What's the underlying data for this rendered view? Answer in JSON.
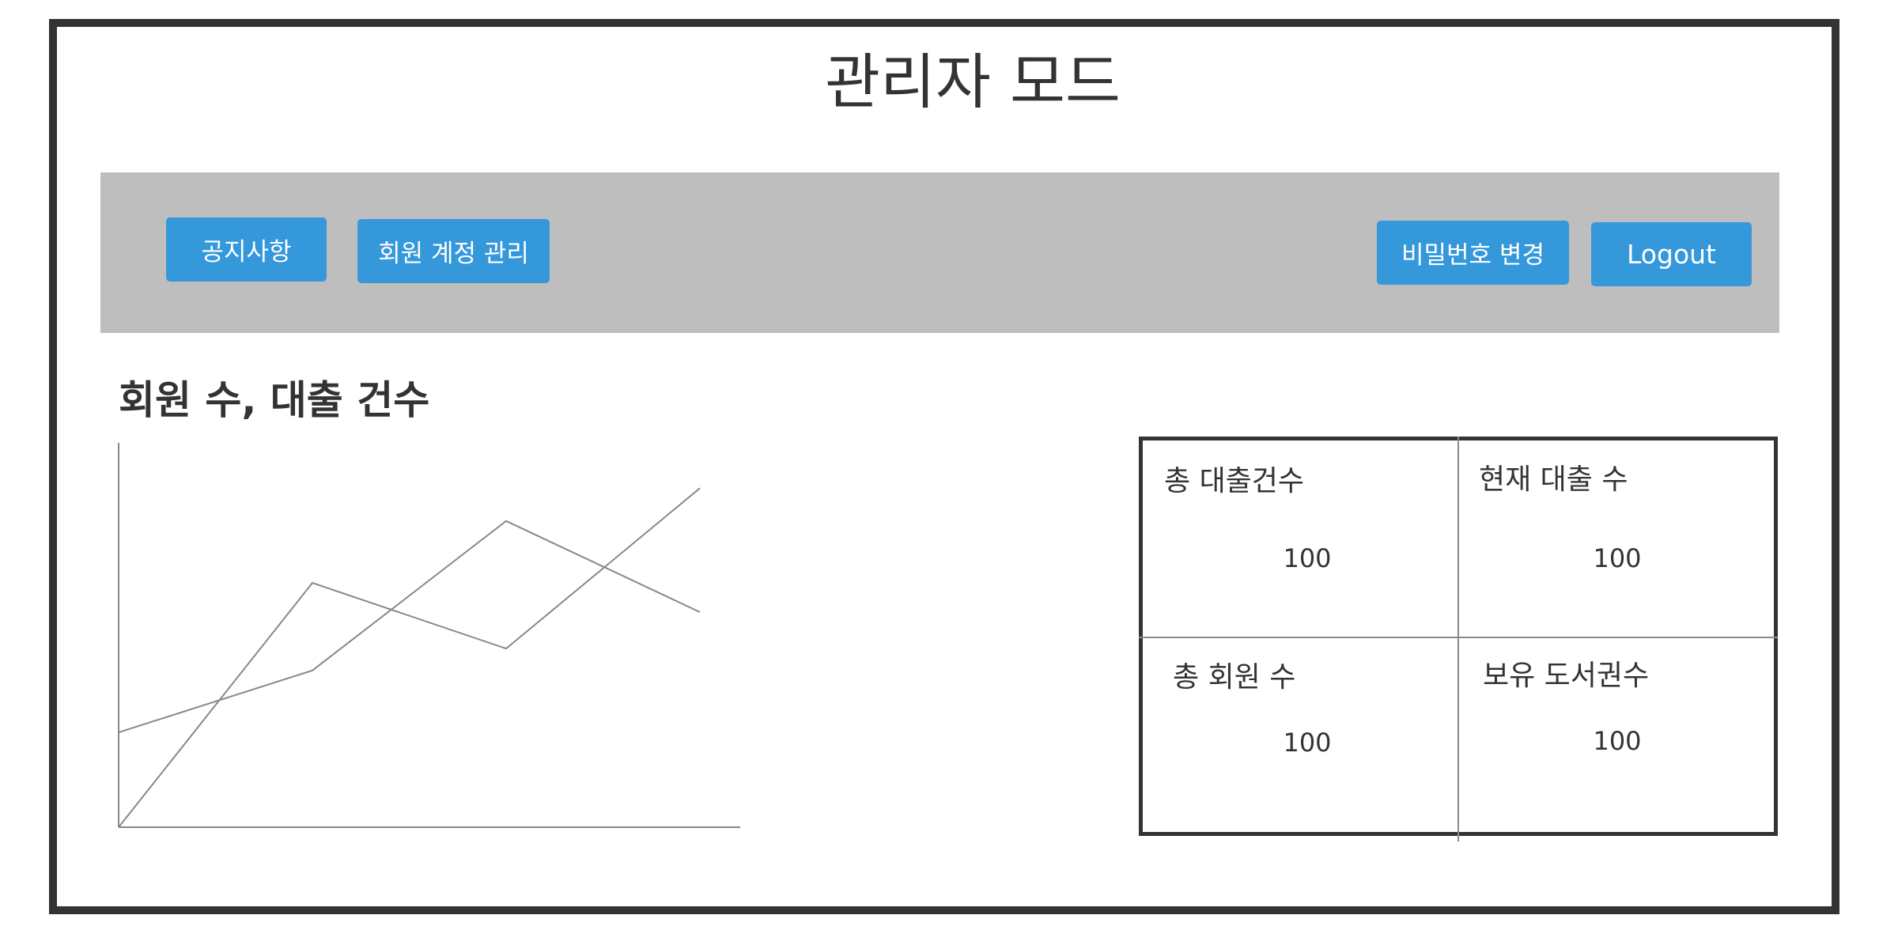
{
  "page": {
    "title": "관리자 모드"
  },
  "nav": {
    "notice_label": "공지사항",
    "account_label": "회원 계정 관리",
    "password_label": "비밀번호 변경",
    "logout_label": "Logout"
  },
  "chart_section": {
    "title": "회원 수, 대출 건수"
  },
  "chart_data": {
    "type": "line",
    "title": "회원 수, 대출 건수",
    "xlabel": "",
    "ylabel": "",
    "x": [
      0,
      1,
      2,
      3
    ],
    "series": [
      {
        "values": [
          0.26,
          0.43,
          0.84,
          0.59
        ]
      },
      {
        "values": [
          0,
          0.67,
          0.49,
          0.93
        ]
      }
    ],
    "grid": false,
    "colors": [
      "#888888",
      "#888888"
    ]
  },
  "stats": {
    "total_loans_label": "총 대출건수",
    "total_loans_value": "100",
    "current_loans_label": "현재 대출 수",
    "current_loans_value": "100",
    "total_members_label": "총 회원 수",
    "total_members_value": "100",
    "owned_books_label": "보유 도서권수",
    "owned_books_value": "100"
  },
  "colors": {
    "button": "#3498db",
    "navbar": "#bebebe",
    "border": "#333333"
  }
}
